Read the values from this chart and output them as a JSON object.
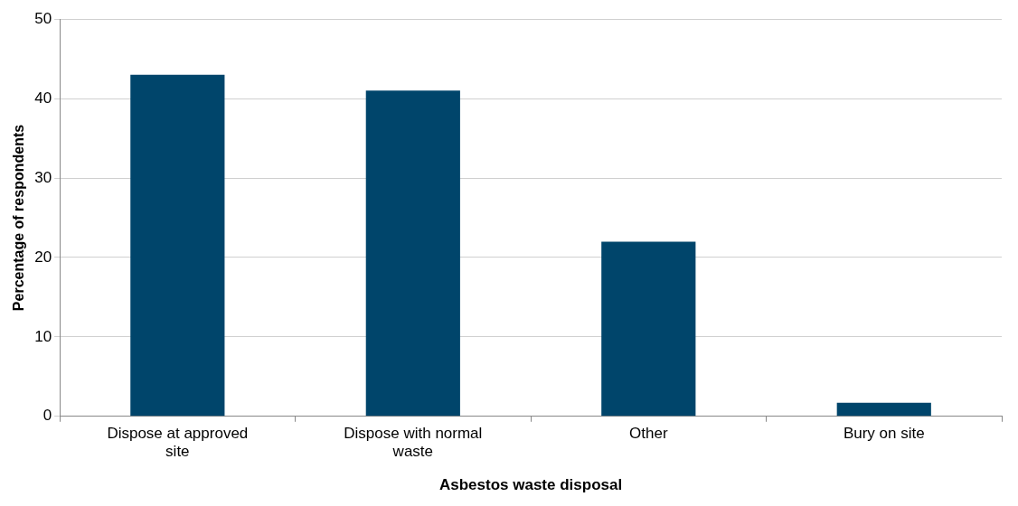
{
  "chart_data": {
    "type": "bar",
    "xlabel": "Asbestos waste disposal",
    "ylabel": "Percentage of respondents",
    "categories": [
      "Dispose at approved site",
      "Dispose with normal waste",
      "Other",
      "Bury on site"
    ],
    "values": [
      43,
      41,
      22,
      1.7
    ],
    "color": "#00456b",
    "ylim": [
      0,
      50
    ],
    "yticks": [
      0,
      10,
      20,
      30,
      40,
      50
    ],
    "grid": "y",
    "legend": false
  }
}
